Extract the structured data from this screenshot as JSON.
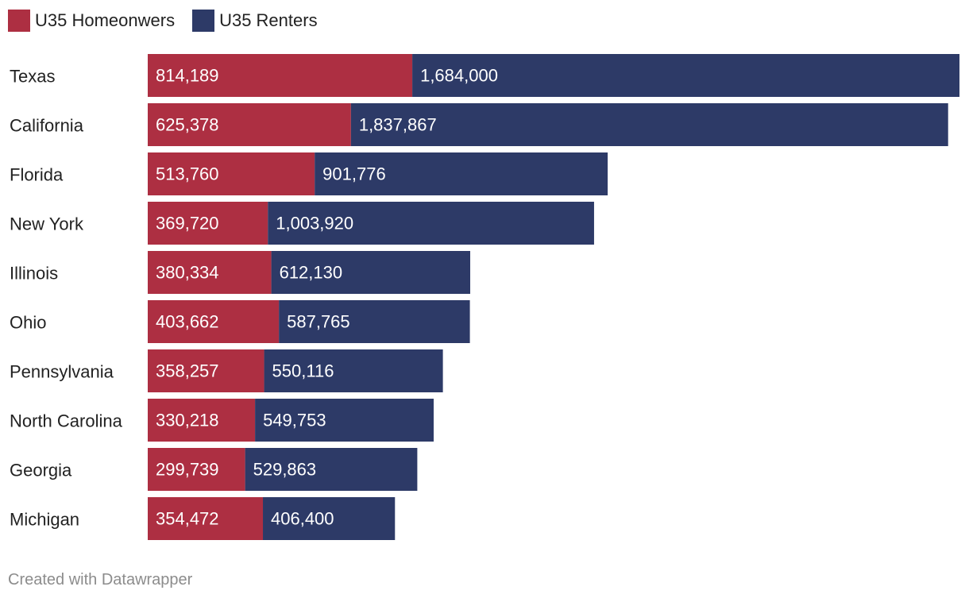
{
  "chart_data": {
    "type": "bar",
    "orientation": "horizontal",
    "stacked": true,
    "categories": [
      "Texas",
      "California",
      "Florida",
      "New York",
      "Illinois",
      "Ohio",
      "Pennsylvania",
      "North Carolina",
      "Georgia",
      "Michigan"
    ],
    "series": [
      {
        "name": "U35 Homeonwers",
        "color": "#ad2f42",
        "values": [
          814189,
          625378,
          513760,
          369720,
          380334,
          403662,
          358257,
          330218,
          299739,
          354472
        ],
        "labels": [
          "814,189",
          "625,378",
          "513,760",
          "369,720",
          "380,334",
          "403,662",
          "358,257",
          "330,218",
          "299,739",
          "354,472"
        ]
      },
      {
        "name": "U35 Renters",
        "color": "#2d3a67",
        "values": [
          1684000,
          1837867,
          901776,
          1003920,
          612130,
          587765,
          550116,
          549753,
          529863,
          406400
        ],
        "labels": [
          "1,684,000",
          "1,837,867",
          "901,776",
          "1,003,920",
          "612,130",
          "587,765",
          "550,116",
          "549,753",
          "529,863",
          "406,400"
        ]
      }
    ],
    "xlim": [
      0,
      2498189
    ],
    "legend_position": "top-left",
    "grid": false
  },
  "footer": "Created with Datawrapper"
}
